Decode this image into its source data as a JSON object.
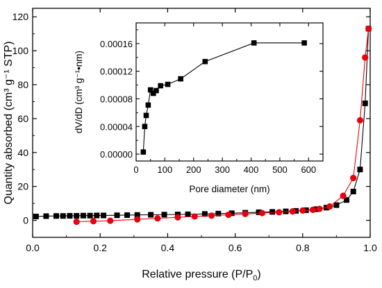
{
  "chart_data": [
    {
      "type": "scatter",
      "xlabel": "Relative pressure (P/P₀)",
      "xlabel_main": "Relative pressure (P/P",
      "xlabel_sub": "0",
      "xlabel_close": ")",
      "ylabel": "Quantity absorbed (cm³ g⁻¹ STP)",
      "xlim": [
        0.0,
        1.0
      ],
      "ylim": [
        -10,
        125
      ],
      "xticks": [
        0.0,
        0.2,
        0.4,
        0.6,
        0.8,
        1.0
      ],
      "xtick_labels": [
        "0.0",
        "0.2",
        "0.4",
        "0.6",
        "0.8",
        "1.0"
      ],
      "yticks": [
        0,
        20,
        40,
        60,
        80,
        100,
        120
      ],
      "ytick_labels": [
        "0",
        "20",
        "40",
        "60",
        "80",
        "100",
        "120"
      ],
      "grid": false,
      "series": [
        {
          "color": "#000000",
          "marker": "square",
          "line": "solid",
          "x": [
            0.01,
            0.04,
            0.07,
            0.09,
            0.11,
            0.13,
            0.15,
            0.17,
            0.19,
            0.21,
            0.25,
            0.28,
            0.31,
            0.35,
            0.39,
            0.43,
            0.46,
            0.51,
            0.55,
            0.59,
            0.63,
            0.67,
            0.71,
            0.75,
            0.78,
            0.81,
            0.84,
            0.87,
            0.9,
            0.93,
            0.95,
            0.97,
            0.985,
            0.995
          ],
          "y": [
            2.3,
            2.5,
            2.6,
            2.6,
            2.7,
            2.7,
            2.8,
            2.8,
            2.9,
            2.9,
            3.0,
            3.1,
            3.2,
            3.3,
            3.4,
            3.5,
            3.6,
            3.8,
            4.0,
            4.2,
            4.5,
            4.8,
            5.0,
            5.3,
            5.6,
            6.0,
            6.6,
            7.5,
            9.0,
            12.0,
            17.0,
            30.0,
            69.0,
            113.0
          ]
        },
        {
          "color": "#e8000f",
          "marker": "circle",
          "line": "solid",
          "x": [
            0.13,
            0.18,
            0.23,
            0.31,
            0.37,
            0.43,
            0.48,
            0.53,
            0.58,
            0.63,
            0.68,
            0.73,
            0.77,
            0.8,
            0.83,
            0.85,
            0.88,
            0.92,
            0.95,
            0.97,
            0.985,
            0.995
          ],
          "y": [
            -0.8,
            -0.5,
            -0.2,
            0.6,
            1.2,
            1.8,
            2.3,
            2.8,
            3.3,
            3.8,
            4.3,
            4.8,
            5.3,
            5.8,
            6.2,
            6.8,
            8.2,
            14.5,
            25.0,
            59.0,
            96.0,
            113.0
          ]
        }
      ]
    },
    {
      "type": "line",
      "inset": true,
      "xlabel": "Pore diameter (nm)",
      "ylabel": "dV/dD (cm³ g⁻¹•nm)",
      "xlim": [
        0,
        650
      ],
      "ylim": [
        -1e-05,
        0.00019
      ],
      "xticks": [
        0,
        100,
        200,
        300,
        400,
        500,
        600
      ],
      "xtick_labels": [
        "0",
        "100",
        "200",
        "300",
        "400",
        "500",
        "600"
      ],
      "yticks": [
        0,
        4e-05,
        8e-05,
        0.00012,
        0.00016
      ],
      "ytick_labels": [
        "0.00000",
        "0.00004",
        "0.00008",
        "0.00012",
        "0.00016"
      ],
      "grid": false,
      "series": [
        {
          "color": "#000000",
          "marker": "square",
          "line": "solid",
          "x": [
            25,
            30,
            35,
            42,
            50,
            60,
            70,
            85,
            110,
            155,
            240,
            410,
            585
          ],
          "y": [
            3e-06,
            4e-05,
            5.6e-05,
            7.1e-05,
            9.3e-05,
            8.8e-05,
            9.2e-05,
            9.9e-05,
            0.000101,
            0.000109,
            0.000134,
            0.000161,
            0.000161
          ]
        }
      ]
    }
  ]
}
